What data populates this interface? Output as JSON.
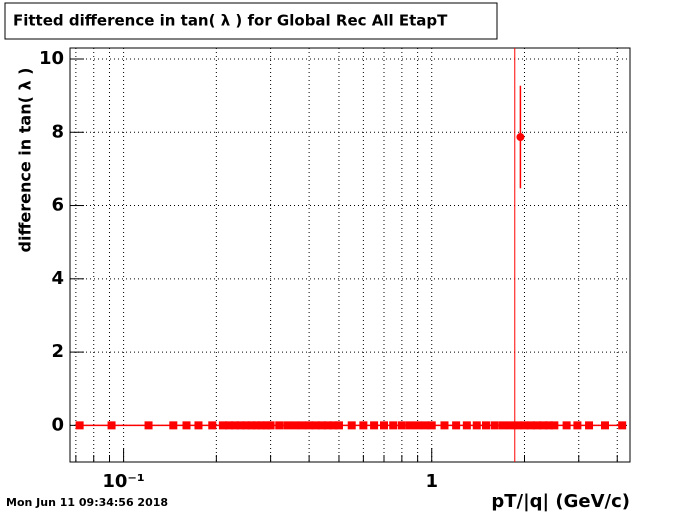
{
  "chart_data": {
    "type": "scatter",
    "title": "Fitted difference in tan( λ ) for Global Rec All EtapT",
    "xlabel": "pT/|q| (GeV/c)",
    "ylabel": "difference in tan( λ )",
    "timestamp": "Mon Jun 11 09:34:56 2018",
    "xscale": "log",
    "xlim": [
      0.067,
      4.4
    ],
    "ylim": [
      -1,
      10.3
    ],
    "xticks": [
      {
        "value": 0.1,
        "label": "10⁻¹"
      },
      1
    ],
    "xminor": [
      0.07,
      0.08,
      0.09,
      0.2,
      0.3,
      0.4,
      0.5,
      0.6,
      0.7,
      0.8,
      0.9,
      2,
      3,
      4
    ],
    "yticks": [
      0,
      2,
      4,
      6,
      8,
      10
    ],
    "grid": true,
    "color": "#ff0000",
    "vline": 1.86,
    "x": [
      0.072,
      0.0914,
      0.1205,
      0.145,
      0.16,
      0.175,
      0.194,
      0.21,
      0.22,
      0.23,
      0.24,
      0.25,
      0.26,
      0.27,
      0.28,
      0.29,
      0.3,
      0.32,
      0.34,
      0.36,
      0.38,
      0.4,
      0.42,
      0.44,
      0.46,
      0.48,
      0.5,
      0.55,
      0.6,
      0.65,
      0.7,
      0.75,
      0.8,
      0.85,
      0.9,
      0.95,
      1.0,
      1.1,
      1.2,
      1.3,
      1.4,
      1.5,
      1.6,
      1.7,
      1.8,
      1.9,
      2.0,
      2.1,
      2.2,
      2.3,
      2.4,
      2.5,
      2.74,
      2.97,
      3.24,
      3.65,
      4.15
    ],
    "values": [
      0,
      0,
      0,
      0,
      0,
      0,
      0,
      0,
      0,
      0,
      0,
      0,
      0,
      0,
      0,
      0,
      0,
      0,
      0,
      0,
      0,
      0,
      0,
      0,
      0,
      0,
      0,
      0,
      0,
      0,
      0,
      0,
      0,
      0,
      0,
      0,
      0,
      0,
      0,
      0,
      0,
      0,
      0,
      0,
      0,
      0,
      0,
      0,
      0,
      0,
      0,
      0,
      0,
      0,
      0,
      0,
      0
    ],
    "highlight": {
      "x": 1.94,
      "value": 7.87,
      "error": 1.4
    }
  }
}
